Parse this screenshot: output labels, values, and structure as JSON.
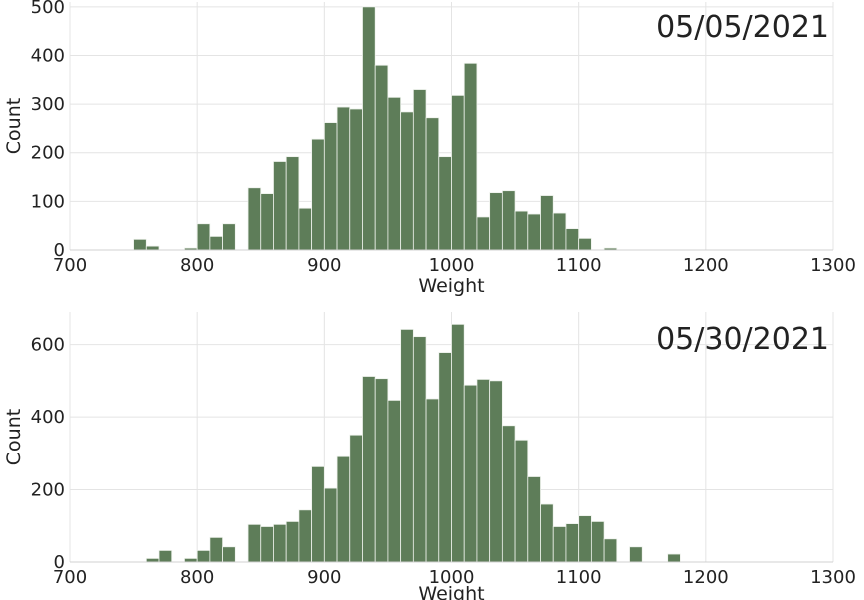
{
  "colors": {
    "bar_fill": "#5e7d59",
    "bar_edge": "#eef2ec",
    "grid": "#e4e4e4",
    "spine": "#d0d0d0",
    "text": "#222222"
  },
  "chart_data": [
    {
      "type": "bar",
      "title": "05/05/2021",
      "xlabel": "Weight",
      "ylabel": "Count",
      "xlim": [
        700,
        1300
      ],
      "ylim": [
        0,
        510
      ],
      "xticks": [
        "700",
        "800",
        "900",
        "1000",
        "1100",
        "1200",
        "1300"
      ],
      "yticks": [
        "0",
        "100",
        "200",
        "300",
        "400",
        "500"
      ],
      "grid": true,
      "bin_width": 10,
      "bin_starts": [
        750,
        760,
        770,
        780,
        790,
        800,
        810,
        820,
        830,
        840,
        850,
        860,
        870,
        880,
        890,
        900,
        910,
        920,
        930,
        940,
        950,
        960,
        970,
        980,
        990,
        1000,
        1010,
        1020,
        1030,
        1040,
        1050,
        1060,
        1070,
        1080,
        1090,
        1100,
        1110,
        1120
      ],
      "values": [
        22,
        8,
        0,
        0,
        4,
        54,
        28,
        54,
        0,
        128,
        116,
        182,
        192,
        86,
        228,
        262,
        294,
        290,
        500,
        380,
        314,
        284,
        330,
        272,
        192,
        318,
        384,
        68,
        118,
        122,
        80,
        74,
        112,
        76,
        44,
        24,
        0,
        4
      ]
    },
    {
      "type": "bar",
      "title": "05/30/2021",
      "xlabel": "Weight",
      "ylabel": "Count",
      "xlim": [
        700,
        1300
      ],
      "ylim": [
        0,
        690
      ],
      "xticks": [
        "700",
        "800",
        "900",
        "1000",
        "1100",
        "1200",
        "1300"
      ],
      "yticks": [
        "0",
        "200",
        "400",
        "600"
      ],
      "grid": true,
      "bin_width": 10,
      "bin_starts": [
        760,
        770,
        780,
        790,
        800,
        810,
        820,
        830,
        840,
        850,
        860,
        870,
        880,
        890,
        900,
        910,
        920,
        930,
        940,
        950,
        960,
        970,
        980,
        990,
        1000,
        1010,
        1020,
        1030,
        1040,
        1050,
        1060,
        1070,
        1080,
        1090,
        1100,
        1110,
        1120,
        1130,
        1140,
        1150,
        1160,
        1170
      ],
      "values": [
        10,
        32,
        0,
        10,
        32,
        68,
        42,
        0,
        104,
        98,
        104,
        112,
        144,
        264,
        204,
        292,
        350,
        512,
        506,
        446,
        642,
        622,
        450,
        578,
        656,
        488,
        504,
        500,
        376,
        336,
        236,
        160,
        98,
        106,
        128,
        112,
        64,
        0,
        42,
        0,
        0,
        22
      ]
    }
  ]
}
